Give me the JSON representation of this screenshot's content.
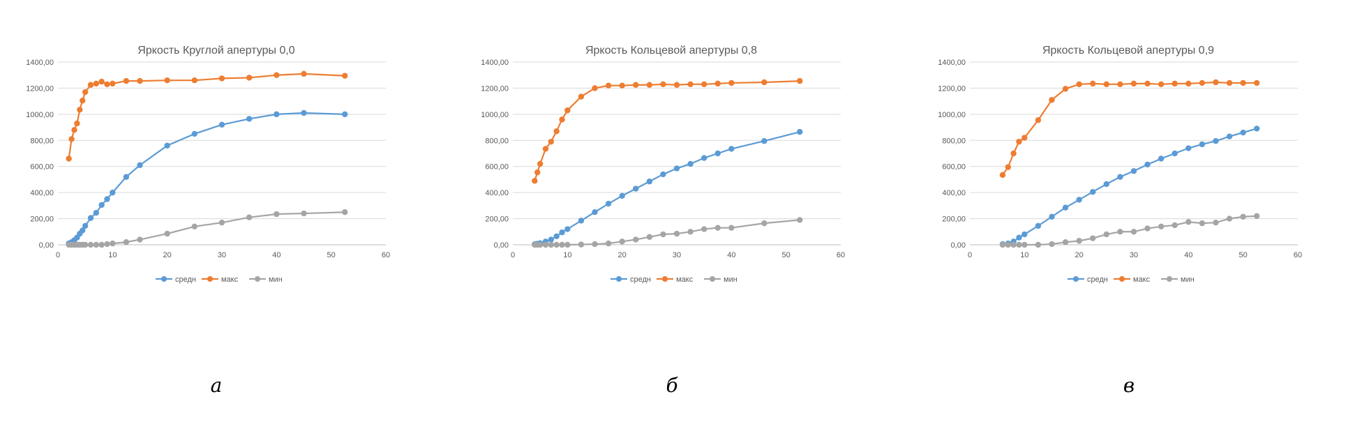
{
  "colors": {
    "srednee": "#5B9BD5",
    "maks": "#ED7D31",
    "min": "#A5A5A5",
    "grid": "#D9D9D9",
    "axis": "#BFBFBF",
    "text": "#595959"
  },
  "panel_letters": [
    "а",
    "б",
    "в"
  ],
  "chart_data": [
    {
      "type": "line",
      "title": "Яркость Круглой апертуры 0,0",
      "xlabel": "",
      "ylabel": "",
      "xlim": [
        0,
        60
      ],
      "ylim": [
        0,
        1400
      ],
      "xticks": [
        "0",
        "10",
        "20",
        "30",
        "40",
        "50",
        "60"
      ],
      "yticks": [
        "0,00",
        "200,00",
        "400,00",
        "600,00",
        "800,00",
        "1000,00",
        "1200,00",
        "1400,00"
      ],
      "grid": true,
      "legend_position": "bottom",
      "series": [
        {
          "name": "средн",
          "color": "#5B9BD5",
          "x": [
            2,
            2.5,
            3,
            3.5,
            4,
            4.5,
            5,
            6,
            7,
            8,
            9,
            10,
            12.5,
            15,
            20,
            25,
            30,
            35,
            40,
            45,
            52.5
          ],
          "y": [
            10,
            20,
            35,
            55,
            85,
            110,
            145,
            205,
            245,
            305,
            350,
            400,
            520,
            610,
            760,
            850,
            920,
            965,
            1000,
            1010,
            1000
          ]
        },
        {
          "name": "макс",
          "color": "#ED7D31",
          "x": [
            2,
            2.5,
            3,
            3.5,
            4,
            4.5,
            5,
            6,
            7,
            8,
            9,
            10,
            12.5,
            15,
            20,
            25,
            30,
            35,
            40,
            45,
            52.5
          ],
          "y": [
            660,
            810,
            880,
            930,
            1035,
            1105,
            1170,
            1225,
            1235,
            1250,
            1230,
            1235,
            1255,
            1255,
            1260,
            1260,
            1275,
            1280,
            1300,
            1310,
            1295
          ]
        },
        {
          "name": "мин",
          "color": "#A5A5A5",
          "x": [
            2,
            2.5,
            3,
            3.5,
            4,
            4.5,
            5,
            6,
            7,
            8,
            9,
            10,
            12.5,
            15,
            20,
            25,
            30,
            35,
            40,
            45,
            52.5
          ],
          "y": [
            0,
            0,
            0,
            0,
            0,
            0,
            0,
            0,
            0,
            0,
            5,
            10,
            20,
            40,
            85,
            140,
            170,
            210,
            235,
            240,
            250
          ]
        }
      ]
    },
    {
      "type": "line",
      "title": "Яркость Кольцевой апертуры 0,8",
      "xlabel": "",
      "ylabel": "",
      "xlim": [
        0,
        60
      ],
      "ylim": [
        0,
        1400
      ],
      "xticks": [
        "0",
        "10",
        "20",
        "30",
        "40",
        "50",
        "60"
      ],
      "yticks": [
        "0,00",
        "200,00",
        "400,00",
        "600,00",
        "800,00",
        "1000,00",
        "1200,00",
        "1400,00"
      ],
      "grid": true,
      "legend_position": "bottom",
      "series": [
        {
          "name": "средн",
          "color": "#5B9BD5",
          "x": [
            4,
            4.5,
            5,
            6,
            7,
            8,
            9,
            10,
            12.5,
            15,
            17.5,
            20,
            22.5,
            25,
            27.5,
            30,
            32.5,
            35,
            37.5,
            40,
            46,
            52.5
          ],
          "y": [
            5,
            8,
            12,
            25,
            40,
            65,
            95,
            120,
            185,
            250,
            315,
            375,
            430,
            485,
            540,
            585,
            620,
            665,
            700,
            735,
            795,
            865
          ]
        },
        {
          "name": "макс",
          "color": "#ED7D31",
          "x": [
            4,
            4.5,
            5,
            6,
            7,
            8,
            9,
            10,
            12.5,
            15,
            17.5,
            20,
            22.5,
            25,
            27.5,
            30,
            32.5,
            35,
            37.5,
            40,
            46,
            52.5
          ],
          "y": [
            490,
            555,
            620,
            735,
            790,
            870,
            960,
            1030,
            1135,
            1200,
            1220,
            1220,
            1225,
            1225,
            1230,
            1225,
            1230,
            1230,
            1235,
            1240,
            1245,
            1255
          ]
        },
        {
          "name": "мин",
          "color": "#A5A5A5",
          "x": [
            4,
            4.5,
            5,
            6,
            7,
            8,
            9,
            10,
            12.5,
            15,
            17.5,
            20,
            22.5,
            25,
            27.5,
            30,
            32.5,
            35,
            37.5,
            40,
            46,
            52.5
          ],
          "y": [
            0,
            0,
            0,
            0,
            0,
            0,
            0,
            0,
            2,
            5,
            10,
            25,
            40,
            60,
            80,
            85,
            100,
            120,
            130,
            130,
            165,
            190
          ]
        }
      ]
    },
    {
      "type": "line",
      "title": "Яркость Кольцевой апертуры 0,9",
      "xlabel": "",
      "ylabel": "",
      "xlim": [
        0,
        60
      ],
      "ylim": [
        0,
        1400
      ],
      "xticks": [
        "0",
        "10",
        "20",
        "30",
        "40",
        "50",
        "60"
      ],
      "yticks": [
        "0,00",
        "200,00",
        "400,00",
        "600,00",
        "800,00",
        "1000,00",
        "1200,00",
        "1400,00"
      ],
      "grid": true,
      "legend_position": "bottom",
      "series": [
        {
          "name": "средн",
          "color": "#5B9BD5",
          "x": [
            6,
            7,
            8,
            9,
            10,
            12.5,
            15,
            17.5,
            20,
            22.5,
            25,
            27.5,
            30,
            32.5,
            35,
            37.5,
            40,
            42.5,
            45,
            47.5,
            50,
            52.5
          ],
          "y": [
            5,
            10,
            25,
            55,
            80,
            145,
            215,
            285,
            345,
            405,
            465,
            520,
            565,
            615,
            660,
            700,
            740,
            770,
            795,
            830,
            860,
            890
          ]
        },
        {
          "name": "макс",
          "color": "#ED7D31",
          "x": [
            6,
            7,
            8,
            9,
            10,
            12.5,
            15,
            17.5,
            20,
            22.5,
            25,
            27.5,
            30,
            32.5,
            35,
            37.5,
            40,
            42.5,
            45,
            47.5,
            50,
            52.5
          ],
          "y": [
            535,
            595,
            700,
            790,
            820,
            955,
            1110,
            1195,
            1230,
            1235,
            1230,
            1230,
            1235,
            1235,
            1230,
            1235,
            1235,
            1240,
            1245,
            1240,
            1240,
            1240
          ]
        },
        {
          "name": "мин",
          "color": "#A5A5A5",
          "x": [
            6,
            7,
            8,
            9,
            10,
            12.5,
            15,
            17.5,
            20,
            22.5,
            25,
            27.5,
            30,
            32.5,
            35,
            37.5,
            40,
            42.5,
            45,
            47.5,
            50,
            52.5
          ],
          "y": [
            0,
            0,
            0,
            0,
            0,
            0,
            5,
            20,
            30,
            50,
            80,
            100,
            100,
            125,
            140,
            150,
            175,
            165,
            170,
            200,
            215,
            220
          ]
        }
      ]
    }
  ]
}
